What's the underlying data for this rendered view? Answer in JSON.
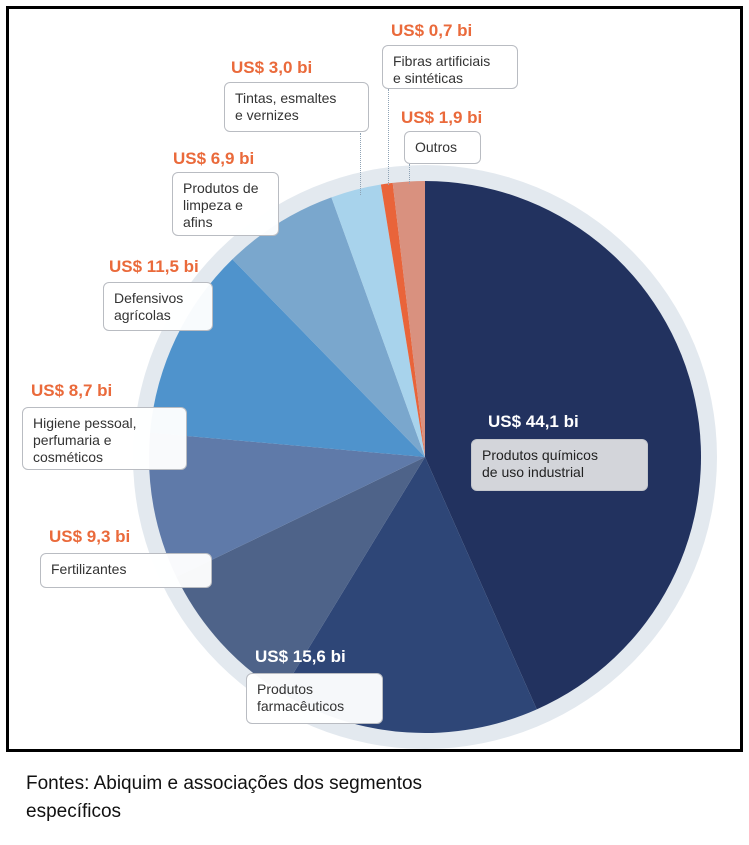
{
  "chart_data": {
    "type": "pie",
    "unit": "US$ bi",
    "slices": [
      {
        "label": "Produtos químicos\nde uso industrial",
        "value": 44.1,
        "display": "US$ 44,1 bi",
        "color": "#22325f"
      },
      {
        "label": "Produtos\nfarmacêuticos",
        "value": 15.6,
        "display": "US$ 15,6 bi",
        "color": "#2e4677"
      },
      {
        "label": "Fertilizantes",
        "value": 9.3,
        "display": "US$ 9,3 bi",
        "color": "#4e6389"
      },
      {
        "label": "Higiene pessoal,\nperfumaria e\ncosméticos",
        "value": 8.7,
        "display": "US$ 8,7 bi",
        "color": "#5f7aa9"
      },
      {
        "label": "Defensivos\nagrícolas",
        "value": 11.5,
        "display": "US$ 11,5 bi",
        "color": "#4f93cc"
      },
      {
        "label": "Produtos de\nlimpeza e\nafins",
        "value": 6.9,
        "display": "US$ 6,9 bi",
        "color": "#7aa7cd"
      },
      {
        "label": "Tintas, esmaltes\ne vernizes",
        "value": 3.0,
        "display": "US$ 3,0 bi",
        "color": "#a8d3ec"
      },
      {
        "label": "Fibras artificiais\ne sintéticas",
        "value": 0.7,
        "display": "US$ 0,7 bi",
        "color": "#e9643a"
      },
      {
        "label": "Outros",
        "value": 1.9,
        "display": "US$ 1,9 bi",
        "color": "#d9917f"
      }
    ],
    "ring_color": "#e3e9ef",
    "value_label_color": "#ea6a3b"
  },
  "source": "Fontes: Abiquim e associações dos segmentos\nespecíficos"
}
